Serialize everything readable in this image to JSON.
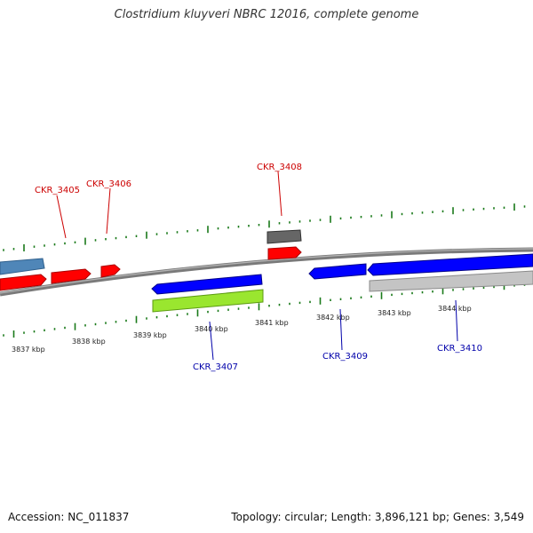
{
  "title": "Clostridium kluyveri NBRC 12016, complete genome",
  "footer": {
    "accession": "Accession: NC_011837",
    "topology": "Topology: circular; Length: 3,896,121 bp; Genes: 3,549"
  },
  "colors": {
    "forward_cds": "#ff0000",
    "reverse_cds": "#0000ff",
    "forward_label": "#cc0000",
    "reverse_label": "#0000aa",
    "other_forward": "#4f86b8",
    "other_reverse": "#9ae62f",
    "pseudo": "#666666",
    "pseudo_light": "#b8b8b8",
    "tick": "#1a7a1a",
    "backbone": "#888888"
  },
  "ticks": [
    "3837 kbp",
    "3838 kbp",
    "3839 kbp",
    "3840 kbp",
    "3841 kbp",
    "3842 kbp",
    "3843 kbp",
    "3844 kbp"
  ],
  "gene_labels": {
    "top": [
      "CKR_3405",
      "CKR_3406",
      "CKR_3408"
    ],
    "bottom": [
      "CKR_3407",
      "CKR_3409",
      "CKR_3410"
    ]
  }
}
